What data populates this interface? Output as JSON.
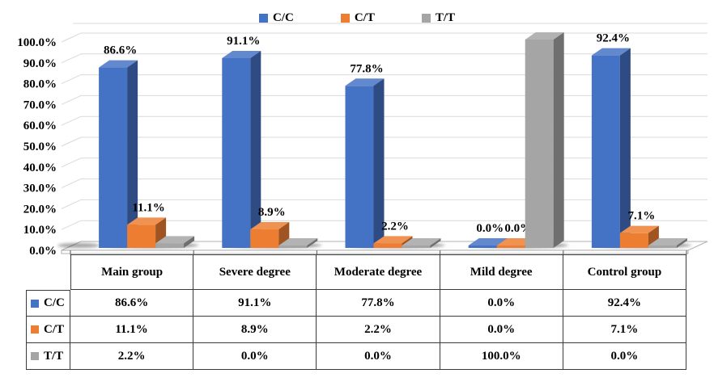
{
  "chart_data": {
    "type": "bar",
    "subtype": "3d-clustered-column",
    "title": "",
    "xlabel": "",
    "ylabel": "",
    "categories": [
      "Main group",
      "Severe degree",
      "Moderate degree",
      "Mild degree",
      "Control group"
    ],
    "series": [
      {
        "name": "C/C",
        "color": "#4472C4",
        "values": [
          86.6,
          91.1,
          77.8,
          0.0,
          92.4
        ],
        "point_labels": [
          "86.6%",
          "91.1%",
          "77.8%",
          "0.0%",
          "92.4%"
        ]
      },
      {
        "name": "C/T",
        "color": "#ED7D31",
        "values": [
          11.1,
          8.9,
          2.2,
          0.0,
          7.1
        ],
        "point_labels": [
          "11.1%",
          "8.9%",
          "2.2%",
          "0.0%",
          "7.1%"
        ]
      },
      {
        "name": "T/T",
        "color": "#A5A5A5",
        "values": [
          2.2,
          0.0,
          0.0,
          100.0,
          0.0
        ],
        "point_labels": []
      }
    ],
    "ylim": [
      0,
      100
    ],
    "yticks": [
      0,
      10,
      20,
      30,
      40,
      50,
      60,
      70,
      80,
      90,
      100
    ],
    "ytick_labels": [
      "0.0%",
      "10.0%",
      "20.0%",
      "30.0%",
      "40.0%",
      "50.0%",
      "60.0%",
      "70.0%",
      "80.0%",
      "90.0%",
      "100.0%"
    ],
    "grid": true,
    "legend_position": "top",
    "gridline_color": "#d9d9d9",
    "data_table": {
      "corner": "",
      "col_headers": [
        "Main group",
        "Severe degree",
        "Moderate degree",
        "Mild degree",
        "Control group"
      ],
      "rows": [
        {
          "label": "C/C",
          "color": "#4472C4",
          "values": [
            "86.6%",
            "91.1%",
            "77.8%",
            "0.0%",
            "92.4%"
          ]
        },
        {
          "label": "C/T",
          "color": "#ED7D31",
          "values": [
            "11.1%",
            "8.9%",
            "2.2%",
            "0.0%",
            "7.1%"
          ]
        },
        {
          "label": "T/T",
          "color": "#A5A5A5",
          "values": [
            "2.2%",
            "0.0%",
            "0.0%",
            "100.0%",
            "0.0%"
          ]
        }
      ]
    }
  }
}
